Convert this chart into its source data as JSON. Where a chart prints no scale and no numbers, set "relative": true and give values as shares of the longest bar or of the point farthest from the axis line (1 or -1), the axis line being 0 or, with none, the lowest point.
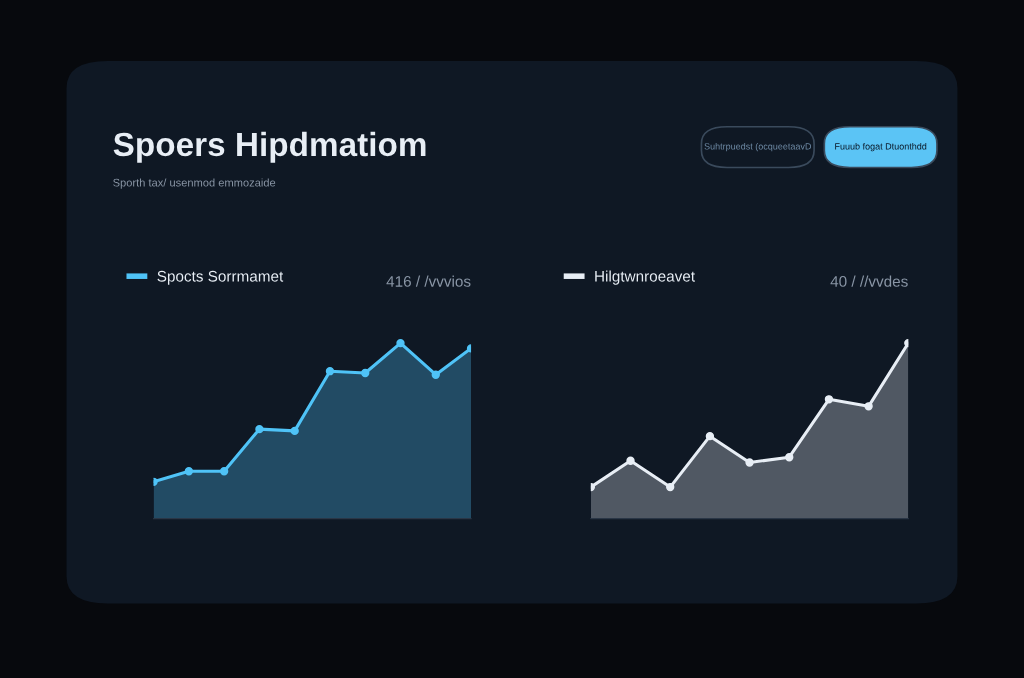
{
  "chart_data": [
    {
      "type": "area",
      "title": "Spoers Hipdmatiom",
      "subtitle": "Sporth tax/ usenmod emmozaide",
      "annotations": [
        "416 / /vvvios",
        "Suhtrpuedst (ocqueetaavD",
        "Fuuub fogat Dtuonthdd"
      ],
      "relative": true,
      "categories": [
        null,
        null,
        null,
        null,
        null,
        null,
        null,
        null,
        null,
        null
      ],
      "series": [
        {
          "name": "Spocts Sorrmamet",
          "color": "#4fc3f7",
          "values": [
            0.21,
            0.27,
            0.27,
            0.51,
            0.5,
            0.84,
            0.83,
            1,
            0.82,
            0.97
          ]
        }
      ],
      "legend": "top left",
      "marker": "circle",
      "line_style": "solid"
    },
    {
      "type": "area",
      "annotations": [
        "40 / //vvdes"
      ],
      "relative": true,
      "categories": [
        null,
        null,
        null,
        null,
        null,
        null,
        null,
        null,
        null
      ],
      "series": [
        {
          "name": "Hilgtwnroeavet",
          "color": "#e8eef5",
          "values": [
            0.18,
            0.33,
            0.18,
            0.47,
            0.32,
            0.35,
            0.68,
            0.64,
            1
          ]
        }
      ],
      "legend": "top left",
      "marker": "circle",
      "line_style": "solid"
    }
  ]
}
